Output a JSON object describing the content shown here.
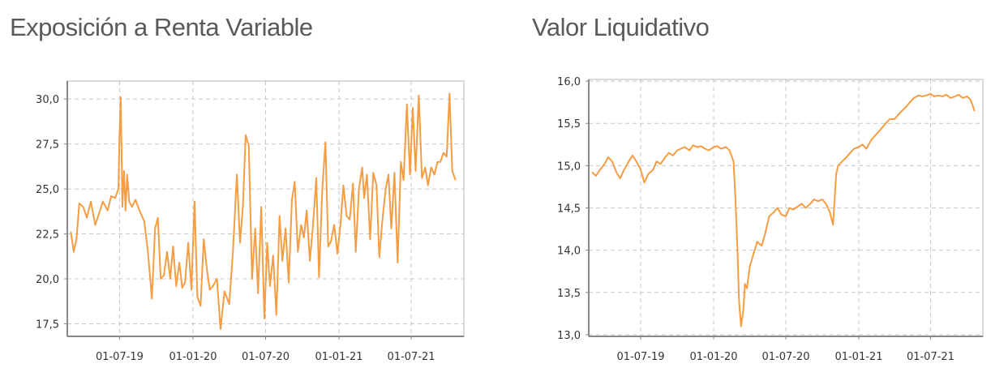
{
  "colors": {
    "series": "#f59d43",
    "grid": "#c8c8c8",
    "axis": "#888888"
  },
  "chart_data": [
    {
      "type": "line",
      "title": "Exposición a Renta Variable",
      "xlabel": "",
      "ylabel": "",
      "ylim": [
        16.8,
        31.0
      ],
      "xlim": [
        "2019-02-20",
        "2021-11-10"
      ],
      "grid": true,
      "yticks": [
        17.5,
        20.0,
        22.5,
        25.0,
        27.5,
        30.0
      ],
      "ytick_labels": [
        "17,5",
        "20,0",
        "22,5",
        "25,0",
        "27,5",
        "30,0"
      ],
      "xticks": [
        "2019-07-01",
        "2020-01-01",
        "2020-07-01",
        "2021-01-01",
        "2021-07-01"
      ],
      "xtick_labels": [
        "01-07-19",
        "01-01-20",
        "01-07-20",
        "01-01-21",
        "01-07-21"
      ],
      "series": [
        {
          "x": [
            "2019-03-01",
            "2019-03-08",
            "2019-03-15",
            "2019-03-22",
            "2019-04-01",
            "2019-04-10",
            "2019-04-20",
            "2019-05-01",
            "2019-05-10",
            "2019-05-20",
            "2019-06-01",
            "2019-06-10",
            "2019-06-20",
            "2019-06-28",
            "2019-07-01",
            "2019-07-04",
            "2019-07-08",
            "2019-07-12",
            "2019-07-16",
            "2019-07-20",
            "2019-07-25",
            "2019-08-01",
            "2019-08-10",
            "2019-08-20",
            "2019-09-01",
            "2019-09-10",
            "2019-09-20",
            "2019-09-28",
            "2019-10-05",
            "2019-10-12",
            "2019-10-20",
            "2019-10-28",
            "2019-11-05",
            "2019-11-12",
            "2019-11-20",
            "2019-11-28",
            "2019-12-05",
            "2019-12-12",
            "2019-12-20",
            "2019-12-28",
            "2020-01-05",
            "2020-01-12",
            "2020-01-20",
            "2020-01-28",
            "2020-02-05",
            "2020-02-12",
            "2020-02-20",
            "2020-03-01",
            "2020-03-10",
            "2020-03-20",
            "2020-04-01",
            "2020-04-10",
            "2020-04-20",
            "2020-04-28",
            "2020-05-05",
            "2020-05-12",
            "2020-05-20",
            "2020-05-28",
            "2020-06-05",
            "2020-06-12",
            "2020-06-20",
            "2020-06-28",
            "2020-07-05",
            "2020-07-12",
            "2020-07-20",
            "2020-07-28",
            "2020-08-05",
            "2020-08-12",
            "2020-08-20",
            "2020-08-28",
            "2020-09-05",
            "2020-09-12",
            "2020-09-20",
            "2020-09-28",
            "2020-10-05",
            "2020-10-12",
            "2020-10-20",
            "2020-10-28",
            "2020-11-05",
            "2020-11-12",
            "2020-11-20",
            "2020-11-28",
            "2020-12-05",
            "2020-12-12",
            "2020-12-20",
            "2020-12-28",
            "2021-01-05",
            "2021-01-12",
            "2021-01-20",
            "2021-01-28",
            "2021-02-05",
            "2021-02-12",
            "2021-02-20",
            "2021-02-28",
            "2021-03-05",
            "2021-03-12",
            "2021-03-20",
            "2021-03-28",
            "2021-04-05",
            "2021-04-12",
            "2021-04-20",
            "2021-04-28",
            "2021-05-05",
            "2021-05-12",
            "2021-05-20",
            "2021-05-28",
            "2021-06-05",
            "2021-06-12",
            "2021-06-20",
            "2021-06-28",
            "2021-07-05",
            "2021-07-12",
            "2021-07-20",
            "2021-07-28",
            "2021-08-05",
            "2021-08-12",
            "2021-08-20",
            "2021-08-28",
            "2021-09-05",
            "2021-09-12",
            "2021-09-20",
            "2021-09-28",
            "2021-10-05",
            "2021-10-12",
            "2021-10-20"
          ],
          "y": [
            22.6,
            21.5,
            22.2,
            24.2,
            24.0,
            23.4,
            24.3,
            23.0,
            23.6,
            24.3,
            23.8,
            24.6,
            24.5,
            25.0,
            28.0,
            30.1,
            24.0,
            26.0,
            23.8,
            25.8,
            24.3,
            24.0,
            24.4,
            23.8,
            23.2,
            21.5,
            18.9,
            22.8,
            23.4,
            20.0,
            20.2,
            21.5,
            20.0,
            21.8,
            19.6,
            20.9,
            19.5,
            19.8,
            22.0,
            19.4,
            24.3,
            19.0,
            18.5,
            22.2,
            20.5,
            19.4,
            19.6,
            20.0,
            17.2,
            19.3,
            18.6,
            21.5,
            25.8,
            22.0,
            24.0,
            28.0,
            27.4,
            20.0,
            22.8,
            19.2,
            24.0,
            17.8,
            22.0,
            19.6,
            21.3,
            18.0,
            23.5,
            21.0,
            22.8,
            19.8,
            24.4,
            25.4,
            21.5,
            23.0,
            22.3,
            23.8,
            21.0,
            23.0,
            25.6,
            20.1,
            25.0,
            27.6,
            21.8,
            22.1,
            23.0,
            21.4,
            23.1,
            25.2,
            23.5,
            23.3,
            25.3,
            21.5,
            25.0,
            26.2,
            24.5,
            25.8,
            22.2,
            25.9,
            25.2,
            21.2,
            23.3,
            25.0,
            25.8,
            22.8,
            25.9,
            20.9,
            26.5,
            25.5,
            29.7,
            25.8,
            29.5,
            26.0,
            30.2,
            25.6,
            26.2,
            25.2,
            26.2,
            25.8,
            26.5,
            26.5,
            27.0,
            26.8,
            30.3,
            26.0,
            25.5
          ]
        }
      ]
    },
    {
      "type": "line",
      "title": "Valor Liquidativo",
      "xlabel": "",
      "ylabel": "",
      "ylim": [
        12.98,
        16.02
      ],
      "xlim": [
        "2019-02-20",
        "2021-11-10"
      ],
      "grid": true,
      "yticks": [
        13.0,
        13.5,
        14.0,
        14.5,
        15.0,
        15.5,
        16.0
      ],
      "ytick_labels": [
        "13,0",
        "13,5",
        "14,0",
        "14,5",
        "15,0",
        "15,5",
        "16,0"
      ],
      "xticks": [
        "2019-07-01",
        "2020-01-01",
        "2020-07-01",
        "2021-01-01",
        "2021-07-01"
      ],
      "xtick_labels": [
        "01-07-19",
        "01-01-20",
        "01-07-20",
        "01-01-21",
        "01-07-21"
      ],
      "series": [
        {
          "x": [
            "2019-03-01",
            "2019-03-10",
            "2019-03-20",
            "2019-04-01",
            "2019-04-10",
            "2019-04-20",
            "2019-05-01",
            "2019-05-10",
            "2019-05-20",
            "2019-06-01",
            "2019-06-10",
            "2019-06-20",
            "2019-07-01",
            "2019-07-10",
            "2019-07-20",
            "2019-08-01",
            "2019-08-10",
            "2019-08-20",
            "2019-09-01",
            "2019-09-10",
            "2019-09-20",
            "2019-10-01",
            "2019-10-10",
            "2019-10-20",
            "2019-11-01",
            "2019-11-10",
            "2019-11-20",
            "2019-12-01",
            "2019-12-10",
            "2019-12-20",
            "2020-01-01",
            "2020-01-10",
            "2020-01-20",
            "2020-02-01",
            "2020-02-10",
            "2020-02-20",
            "2020-02-25",
            "2020-03-01",
            "2020-03-05",
            "2020-03-10",
            "2020-03-16",
            "2020-03-20",
            "2020-03-25",
            "2020-04-01",
            "2020-04-10",
            "2020-04-20",
            "2020-05-01",
            "2020-05-10",
            "2020-05-20",
            "2020-06-01",
            "2020-06-10",
            "2020-06-20",
            "2020-07-01",
            "2020-07-10",
            "2020-07-20",
            "2020-08-01",
            "2020-08-10",
            "2020-08-20",
            "2020-09-01",
            "2020-09-10",
            "2020-09-20",
            "2020-10-01",
            "2020-10-10",
            "2020-10-20",
            "2020-10-28",
            "2020-11-05",
            "2020-11-10",
            "2020-11-20",
            "2020-12-01",
            "2020-12-10",
            "2020-12-20",
            "2021-01-01",
            "2021-01-10",
            "2021-01-20",
            "2021-02-01",
            "2021-02-10",
            "2021-02-20",
            "2021-03-01",
            "2021-03-10",
            "2021-03-20",
            "2021-04-01",
            "2021-04-10",
            "2021-04-20",
            "2021-05-01",
            "2021-05-10",
            "2021-05-20",
            "2021-06-01",
            "2021-06-10",
            "2021-06-20",
            "2021-07-01",
            "2021-07-10",
            "2021-07-20",
            "2021-08-01",
            "2021-08-10",
            "2021-08-20",
            "2021-09-01",
            "2021-09-10",
            "2021-09-20",
            "2021-10-01",
            "2021-10-10",
            "2021-10-20"
          ],
          "y": [
            14.92,
            14.88,
            14.95,
            15.02,
            15.1,
            15.05,
            14.92,
            14.85,
            14.95,
            15.05,
            15.12,
            15.05,
            14.95,
            14.8,
            14.9,
            14.95,
            15.05,
            15.02,
            15.1,
            15.15,
            15.12,
            15.18,
            15.2,
            15.22,
            15.18,
            15.24,
            15.22,
            15.23,
            15.2,
            15.18,
            15.22,
            15.23,
            15.2,
            15.22,
            15.18,
            15.05,
            14.6,
            14.0,
            13.4,
            13.1,
            13.3,
            13.6,
            13.55,
            13.8,
            13.95,
            14.1,
            14.05,
            14.2,
            14.4,
            14.45,
            14.5,
            14.42,
            14.4,
            14.5,
            14.48,
            14.52,
            14.55,
            14.5,
            14.55,
            14.6,
            14.58,
            14.6,
            14.55,
            14.45,
            14.3,
            14.9,
            15.0,
            15.05,
            15.1,
            15.15,
            15.2,
            15.22,
            15.25,
            15.2,
            15.3,
            15.35,
            15.4,
            15.45,
            15.5,
            15.55,
            15.55,
            15.6,
            15.65,
            15.7,
            15.75,
            15.8,
            15.83,
            15.82,
            15.83,
            15.85,
            15.82,
            15.83,
            15.82,
            15.84,
            15.8,
            15.82,
            15.84,
            15.8,
            15.82,
            15.78,
            15.65
          ]
        }
      ]
    }
  ]
}
